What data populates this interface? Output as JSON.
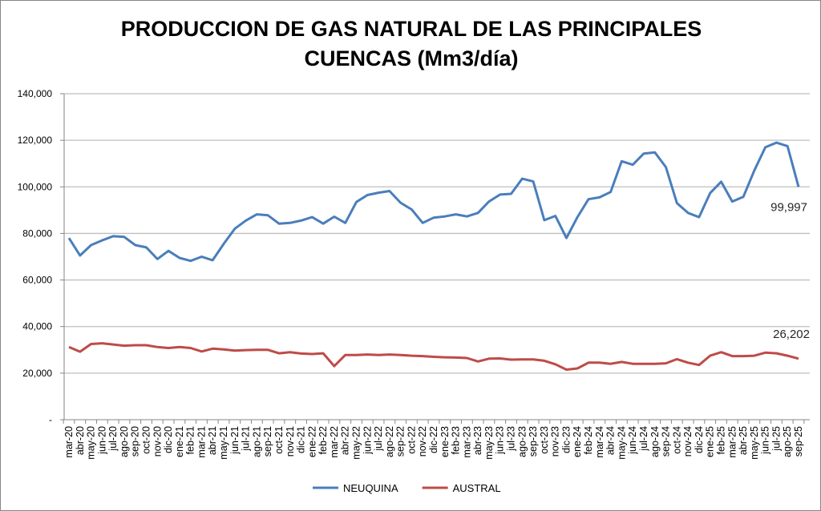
{
  "chart_data": {
    "type": "line",
    "title": [
      "PRODUCCION DE GAS NATURAL DE LAS PRINCIPALES",
      "CUENCAS (Mm3/día)"
    ],
    "xlabel": "",
    "ylabel": "",
    "ylim": [
      0,
      140000
    ],
    "yticks": [
      0,
      20000,
      40000,
      60000,
      80000,
      100000,
      120000,
      140000
    ],
    "ytick_labels": [
      "-",
      "20,000",
      "40,000",
      "60,000",
      "80,000",
      "100,000",
      "120,000",
      "140,000"
    ],
    "grid": true,
    "legend": "bottom",
    "categories": [
      "mar-20",
      "abr-20",
      "may-20",
      "jun-20",
      "jul-20",
      "ago-20",
      "sep-20",
      "oct-20",
      "nov-20",
      "dic-20",
      "ene-21",
      "feb-21",
      "mar-21",
      "abr-21",
      "may-21",
      "jun-21",
      "jul-21",
      "ago-21",
      "sep-21",
      "oct-21",
      "nov-21",
      "dic-21",
      "ene-22",
      "feb-22",
      "mar-22",
      "abr-22",
      "may-22",
      "jun-22",
      "jul-22",
      "ago-22",
      "sep-22",
      "oct-22",
      "nov-22",
      "dic-22",
      "ene-23",
      "feb-23",
      "mar-23",
      "abr-23",
      "may-23",
      "jun-23",
      "jul-23",
      "ago-23",
      "sep-23",
      "oct-23",
      "nov-23",
      "dic-23",
      "ene-24",
      "feb-24",
      "mar-24",
      "abr-24",
      "may-24",
      "jun-24",
      "jul-24",
      "ago-24",
      "sep-24",
      "oct-24",
      "nov-24",
      "dic-24",
      "ene-25",
      "feb-25",
      "mar-25",
      "abr-25",
      "may-25",
      "jun-25",
      "jul-25",
      "ago-25",
      "sep-25"
    ],
    "series": [
      {
        "name": "NEUQUINA",
        "color": "#4a7ebb",
        "values": [
          78000,
          70500,
          75000,
          77000,
          78800,
          78500,
          75000,
          74000,
          69000,
          72500,
          69500,
          68200,
          70000,
          68500,
          75500,
          82000,
          85500,
          88200,
          87800,
          84200,
          84500,
          85500,
          87000,
          84200,
          87200,
          84500,
          93500,
          96500,
          97500,
          98200,
          93200,
          90300,
          84500,
          86800,
          87300,
          88200,
          87300,
          88800,
          93700,
          96700,
          97000,
          103500,
          102300,
          85700,
          87500,
          78000,
          87000,
          94700,
          95500,
          97800,
          111000,
          109500,
          114300,
          114800,
          108500,
          93000,
          88800,
          87000,
          97300,
          102200,
          93700,
          95700,
          107000,
          117000,
          119000,
          117500,
          99997
        ],
        "last_label": "99,997"
      },
      {
        "name": "AUSTRAL",
        "color": "#be4b48",
        "values": [
          31200,
          29200,
          32500,
          32800,
          32300,
          31800,
          32000,
          32000,
          31200,
          30800,
          31200,
          30800,
          29300,
          30500,
          30200,
          29700,
          29900,
          30000,
          30000,
          28500,
          29000,
          28400,
          28200,
          28500,
          23000,
          27800,
          27800,
          28000,
          27800,
          28000,
          27800,
          27500,
          27300,
          27000,
          26800,
          26700,
          26500,
          25000,
          26200,
          26300,
          25800,
          25900,
          25900,
          25300,
          23800,
          21500,
          22000,
          24500,
          24500,
          24000,
          24800,
          24000,
          24000,
          24000,
          24200,
          26000,
          24500,
          23500,
          27500,
          29000,
          27300,
          27300,
          27500,
          28800,
          28500,
          27500,
          26202
        ],
        "last_label": "26,202"
      }
    ]
  }
}
